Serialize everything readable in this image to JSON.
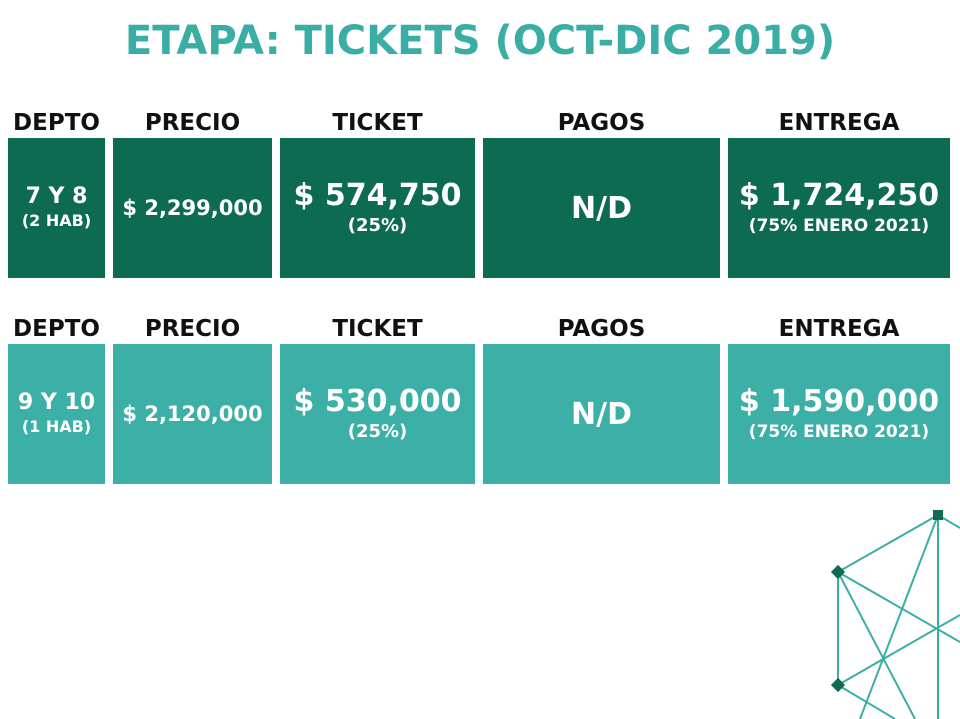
{
  "title": "ETAPA: TICKETS (OCT-DIC 2019)",
  "headers": [
    "DEPTO",
    "PRECIO",
    "TICKET",
    "PAGOS",
    "ENTREGA"
  ],
  "rows": [
    {
      "depto": "7 Y 8",
      "depto_sub": "(2 HAB)",
      "precio": "$ 2,299,000",
      "ticket": "$ 574,750",
      "ticket_sub": "(25%)",
      "pagos": "N/D",
      "entrega": "$ 1,724,250",
      "entrega_sub": "(75% ENERO 2021)",
      "color": "#0d6b52"
    },
    {
      "depto": "9 Y 10",
      "depto_sub": "(1 HAB)",
      "precio": "$ 2,120,000",
      "ticket": "$ 530,000",
      "ticket_sub": "(25%)",
      "pagos": "N/D",
      "entrega": "$ 1,590,000",
      "entrega_sub": "(75% ENERO 2021)",
      "color": "#3cb0a6"
    }
  ],
  "colors": {
    "title": "#3aaea4",
    "dark": "#0d6b52",
    "light": "#3cb0a6"
  },
  "decoration": "hexagon-network-graphic"
}
